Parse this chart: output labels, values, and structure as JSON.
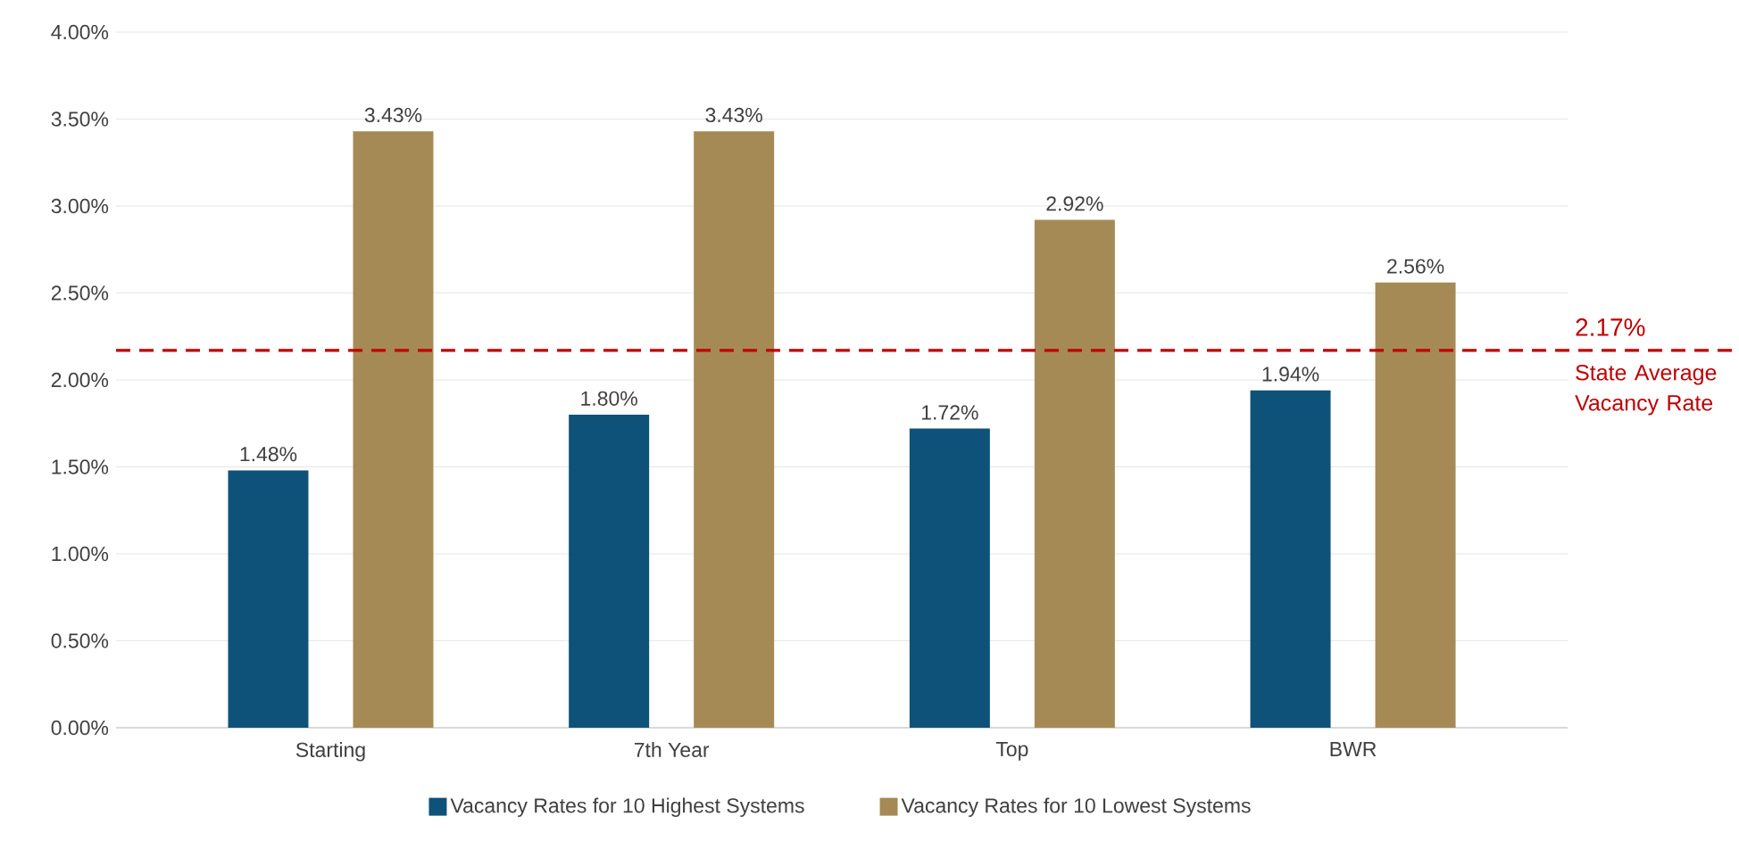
{
  "chart_data": {
    "type": "bar",
    "categories": [
      "Starting",
      "7th Year",
      "Top",
      "BWR"
    ],
    "series": [
      {
        "name": "Vacancy Rates for 10 Highest Systems",
        "color": "#0e5279",
        "values": [
          1.48,
          1.8,
          1.72,
          1.94
        ],
        "value_labels": [
          "1.48%",
          "1.80%",
          "1.72%",
          "1.94%"
        ]
      },
      {
        "name": "Vacancy Rates for 10 Lowest Systems",
        "color": "#a68a55",
        "values": [
          3.43,
          3.43,
          2.92,
          2.56
        ],
        "value_labels": [
          "3.43%",
          "3.43%",
          "2.92%",
          "2.56%"
        ]
      }
    ],
    "ylim": [
      0,
      4
    ],
    "yticks": [
      {
        "value": 0,
        "label": "0.00%"
      },
      {
        "value": 0.5,
        "label": "0.50%"
      },
      {
        "value": 1,
        "label": "1.00%"
      },
      {
        "value": 1.5,
        "label": "1.50%"
      },
      {
        "value": 2,
        "label": "2.00%"
      },
      {
        "value": 2.5,
        "label": "2.50%"
      },
      {
        "value": 3,
        "label": "3.00%"
      },
      {
        "value": 3.5,
        "label": "3.50%"
      },
      {
        "value": 4,
        "label": "4.00%"
      }
    ],
    "ref_lines": [
      {
        "axis": "y",
        "value": 2.17,
        "label": "State Average Vacancy Rate",
        "color": "#c00000",
        "line_style": "dashed"
      }
    ],
    "annotations": [
      {
        "text": "2.17%",
        "y": 2.17
      }
    ],
    "grid": "y",
    "legend": "bottom"
  }
}
